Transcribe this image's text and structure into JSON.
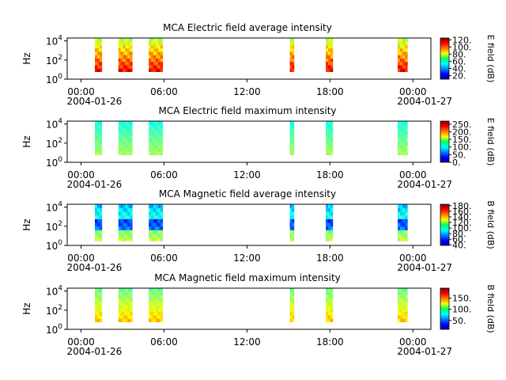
{
  "figure": {
    "x_tick_labels": [
      "00:00",
      "06:00",
      "12:00",
      "18:00",
      "00:00"
    ],
    "x_range_start_label": "2004-01-26",
    "x_range_end_label": "2004-01-27",
    "y_tick_labels": [
      "10^0",
      "10^2",
      "10^4"
    ]
  },
  "chart_data": [
    {
      "type": "heatmap",
      "title": "MCA  Electric field average intensity",
      "ylabel": "Hz",
      "y_scale": "log",
      "ylim": [
        1,
        20000
      ],
      "x_ticks": [
        "00:00",
        "06:00",
        "12:00",
        "18:00",
        "00:00"
      ],
      "x_dates": [
        "2004-01-26",
        "2004-01-27"
      ],
      "colorbar": {
        "label": "E field (dB)",
        "range": [
          10,
          125
        ],
        "ticks": [
          20,
          40,
          60,
          80,
          100,
          120
        ],
        "tick_labels": [
          "20.",
          "40.",
          "60.",
          "80.",
          "100.",
          "120."
        ],
        "colormap": "jet"
      },
      "data_intervals_hours": [
        [
          1.0,
          1.5
        ],
        [
          2.7,
          3.7
        ],
        [
          4.9,
          5.9
        ],
        [
          15.1,
          15.4
        ],
        [
          17.7,
          18.2
        ],
        [
          22.9,
          23.6
        ]
      ],
      "freq_range_hz": [
        6,
        20000
      ],
      "typical_level": 85
    },
    {
      "type": "heatmap",
      "title": "MCA  Electric field maximum intensity",
      "ylabel": "Hz",
      "y_scale": "log",
      "ylim": [
        1,
        20000
      ],
      "x_ticks": [
        "00:00",
        "06:00",
        "12:00",
        "18:00",
        "00:00"
      ],
      "x_dates": [
        "2004-01-26",
        "2004-01-27"
      ],
      "colorbar": {
        "label": "E field (dB)",
        "range": [
          0,
          270
        ],
        "ticks": [
          0,
          50,
          100,
          150,
          200,
          250
        ],
        "tick_labels": [
          "0.",
          "50.",
          "100.",
          "150.",
          "200.",
          "250."
        ],
        "colormap": "jet"
      },
      "data_intervals_hours": [
        [
          1.0,
          1.5
        ],
        [
          2.7,
          3.7
        ],
        [
          4.9,
          5.9
        ],
        [
          15.1,
          15.4
        ],
        [
          17.7,
          18.2
        ],
        [
          22.9,
          23.6
        ]
      ],
      "freq_range_hz": [
        6,
        20000
      ],
      "typical_level": 120
    },
    {
      "type": "heatmap",
      "title": "MCA  Magnetic field average intensity",
      "ylabel": "Hz",
      "y_scale": "log",
      "ylim": [
        1,
        20000
      ],
      "x_ticks": [
        "00:00",
        "06:00",
        "12:00",
        "18:00",
        "00:00"
      ],
      "x_dates": [
        "2004-01-26",
        "2004-01-27"
      ],
      "colorbar": {
        "label": "B field (dB)",
        "range": [
          38,
          185
        ],
        "ticks": [
          40,
          60,
          80,
          100,
          120,
          140,
          160,
          180
        ],
        "tick_labels": [
          "40.",
          "60.",
          "80.",
          "100.",
          "120.",
          "140.",
          "160.",
          "180."
        ],
        "colormap": "jet"
      },
      "data_intervals_hours": [
        [
          1.0,
          1.5
        ],
        [
          2.7,
          3.7
        ],
        [
          4.9,
          5.9
        ],
        [
          15.1,
          15.4
        ],
        [
          17.7,
          18.2
        ],
        [
          22.9,
          23.6
        ]
      ],
      "freq_range_hz": [
        3,
        20000
      ],
      "typical_level": 95
    },
    {
      "type": "heatmap",
      "title": "MCA  Magnetic field maximum intensity",
      "ylabel": "Hz",
      "y_scale": "log",
      "ylim": [
        1,
        20000
      ],
      "x_ticks": [
        "00:00",
        "06:00",
        "12:00",
        "18:00",
        "00:00"
      ],
      "x_dates": [
        "2004-01-26",
        "2004-01-27"
      ],
      "colorbar": {
        "label": "B field (dB)",
        "range": [
          10,
          195
        ],
        "ticks": [
          50,
          100,
          150
        ],
        "tick_labels": [
          "50.",
          "100.",
          "150."
        ],
        "colormap": "jet"
      },
      "data_intervals_hours": [
        [
          1.0,
          1.5
        ],
        [
          2.7,
          3.7
        ],
        [
          4.9,
          5.9
        ],
        [
          15.1,
          15.4
        ],
        [
          17.7,
          18.2
        ],
        [
          22.9,
          23.6
        ]
      ],
      "freq_range_hz": [
        6,
        20000
      ],
      "typical_level": 110
    }
  ]
}
